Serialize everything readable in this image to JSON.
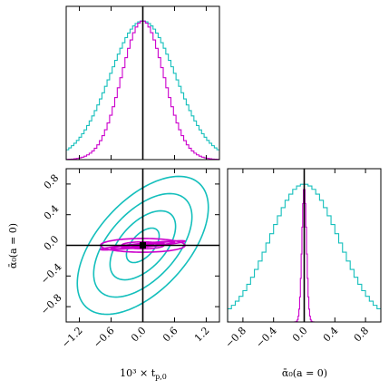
{
  "chart_data": {
    "type": "corner",
    "parameters": [
      {
        "id": "t",
        "label": "10³ × t_{p,0}",
        "xlim": [
          -1.45,
          1.45
        ],
        "ticks": [
          -1.2,
          -0.6,
          0.0,
          0.6,
          1.2
        ],
        "tick_labels": [
          "−1.2",
          "−0.6",
          "0.0",
          "0.6",
          "1.2"
        ],
        "truth": 0
      },
      {
        "id": "a",
        "label": "ᾱ₀(a = 0)",
        "xlim": [
          -1.0,
          1.0
        ],
        "ticks": [
          -0.8,
          -0.4,
          0.0,
          0.4,
          0.8
        ],
        "tick_labels": [
          "−0.8",
          "−0.4",
          "0.0",
          "0.4",
          "0.8"
        ],
        "truth": 0
      }
    ],
    "axis_labels": {
      "x_bottom_left": "10³ × t",
      "x_bottom_left_sub": "p,0",
      "x_bottom_right": "ᾱ₀(a = 0)",
      "y_left": "ᾱ₀(a = 0)"
    },
    "series": [
      {
        "name": "",
        "color": "#14bfbc",
        "t_sigma": 0.62,
        "a_sigma": 0.45,
        "rho": 0.55,
        "contour_levels": [
          0.5,
          1.0,
          1.5,
          2.0
        ]
      },
      {
        "name": "",
        "color": "#cc00cc",
        "t_sigma": 0.4,
        "a_sigma": 0.03,
        "rho": 0.9,
        "contour_levels": [
          0.5,
          1.0,
          1.5,
          2.0
        ]
      }
    ],
    "extra_contours": [
      {
        "color": "#cc00cc",
        "t_sigma": 0.4,
        "a_sigma": 0.045,
        "rho": 0.0,
        "levels": [
          1.0,
          2.0
        ]
      }
    ],
    "hist_bins": {
      "t": 60,
      "a": 40
    },
    "truth_color": "#000000",
    "truth_point": [
      0,
      0
    ]
  }
}
